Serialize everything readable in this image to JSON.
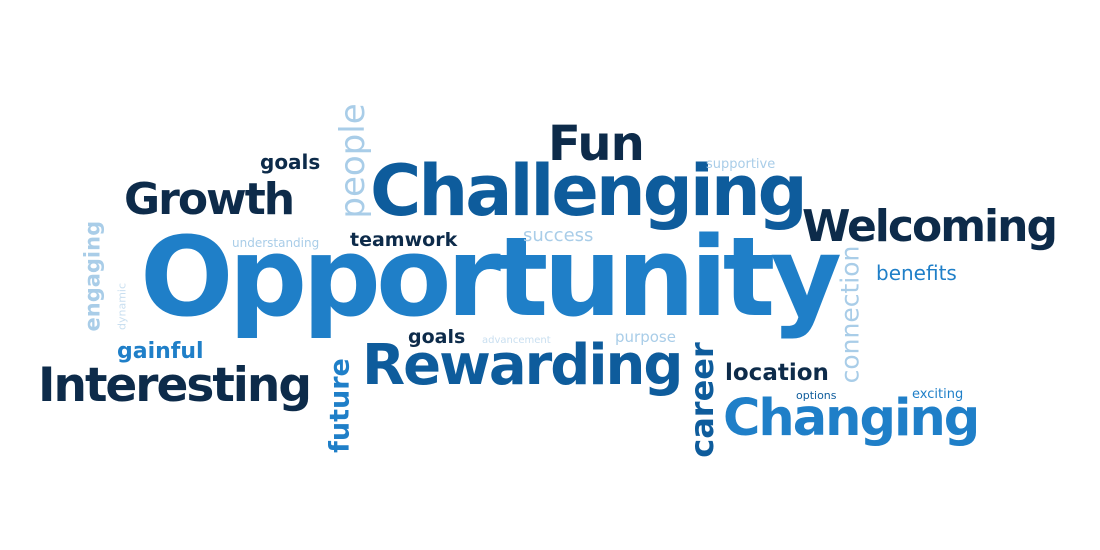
{
  "colors": {
    "navy": "#0d2b4a",
    "deep_blue": "#0e5c9c",
    "mid_blue": "#1f7fc8",
    "light_blue": "#a9cde8",
    "pale_blue": "#c9dff0"
  },
  "words": {
    "opportunity": "Opportunity",
    "challenging": "Challenging",
    "rewarding": "Rewarding",
    "growth": "Growth",
    "welcoming": "Welcoming",
    "interesting": "Interesting",
    "changing": "Changing",
    "fun": "Fun",
    "people": "people",
    "future": "future",
    "career": "career",
    "connection": "connection",
    "engaging": "engaging",
    "dynamic": "dynamic",
    "goals_top": "goals",
    "understanding": "understanding",
    "teamwork": "teamwork",
    "success": "success",
    "supportive": "supportive",
    "benefits": "benefits",
    "gainful": "gainful",
    "goals_mid": "goals",
    "advancement": "advancement",
    "purpose": "purpose",
    "location": "location",
    "options": "options",
    "exciting": "exciting"
  },
  "word_colors": {
    "opportunity": "mid_blue",
    "challenging": "deep_blue",
    "rewarding": "deep_blue",
    "growth": "navy",
    "welcoming": "navy",
    "interesting": "navy",
    "changing": "mid_blue",
    "fun": "navy",
    "people": "light_blue",
    "future": "mid_blue",
    "career": "deep_blue",
    "connection": "light_blue",
    "engaging": "light_blue",
    "dynamic": "pale_blue",
    "goals_top": "navy",
    "understanding": "light_blue",
    "teamwork": "navy",
    "success": "light_blue",
    "supportive": "light_blue",
    "benefits": "mid_blue",
    "gainful": "mid_blue",
    "goals_mid": "navy",
    "advancement": "pale_blue",
    "purpose": "light_blue",
    "location": "navy",
    "options": "deep_blue",
    "exciting": "mid_blue"
  }
}
